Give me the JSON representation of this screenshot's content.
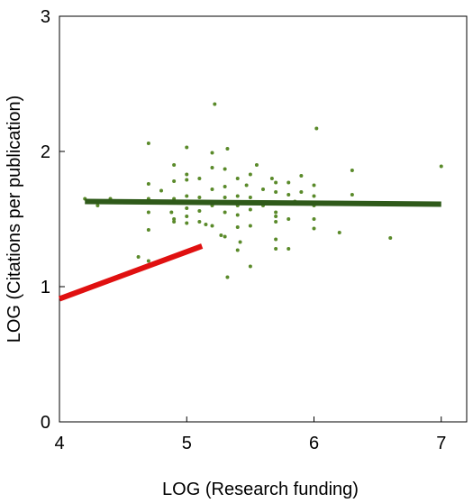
{
  "chart_data": {
    "type": "scatter",
    "title": "",
    "xlabel": "LOG (Research funding)",
    "ylabel": "LOG (Citations per publication)",
    "xlim": [
      4,
      7.2
    ],
    "ylim": [
      0,
      3
    ],
    "x_ticks": [
      "4",
      "5",
      "6",
      "7"
    ],
    "y_ticks": [
      "0",
      "1",
      "2",
      "3"
    ],
    "grid": false,
    "legend": "none",
    "colors": {
      "points": "#5a8a2a",
      "fit_line": "#2f5a1a",
      "red_line": "#e01010",
      "axes": "#000000"
    },
    "series": [
      {
        "values": [
          [
            4.2,
            1.65
          ],
          [
            4.3,
            1.6
          ],
          [
            4.4,
            1.65
          ],
          [
            4.62,
            1.22
          ],
          [
            4.7,
            1.19
          ],
          [
            4.7,
            1.42
          ],
          [
            4.7,
            1.55
          ],
          [
            4.7,
            1.65
          ],
          [
            4.7,
            1.76
          ],
          [
            4.7,
            2.06
          ],
          [
            4.8,
            1.71
          ],
          [
            4.88,
            1.55
          ],
          [
            4.9,
            1.48
          ],
          [
            4.9,
            1.5
          ],
          [
            4.9,
            1.65
          ],
          [
            4.9,
            1.78
          ],
          [
            4.9,
            1.9
          ],
          [
            5.0,
            1.47
          ],
          [
            5.0,
            1.52
          ],
          [
            5.0,
            1.58
          ],
          [
            5.0,
            1.67
          ],
          [
            5.0,
            1.79
          ],
          [
            5.0,
            1.83
          ],
          [
            5.0,
            2.03
          ],
          [
            5.1,
            1.48
          ],
          [
            5.1,
            1.56
          ],
          [
            5.1,
            1.66
          ],
          [
            5.1,
            1.8
          ],
          [
            5.15,
            1.46
          ],
          [
            5.2,
            1.45
          ],
          [
            5.2,
            1.6
          ],
          [
            5.2,
            1.72
          ],
          [
            5.2,
            1.88
          ],
          [
            5.2,
            1.99
          ],
          [
            5.22,
            2.35
          ],
          [
            5.25,
            1.62
          ],
          [
            5.27,
            1.38
          ],
          [
            5.3,
            1.37
          ],
          [
            5.3,
            1.55
          ],
          [
            5.3,
            1.66
          ],
          [
            5.3,
            1.74
          ],
          [
            5.3,
            1.87
          ],
          [
            5.32,
            2.02
          ],
          [
            5.32,
            1.07
          ],
          [
            5.4,
            1.27
          ],
          [
            5.4,
            1.44
          ],
          [
            5.4,
            1.53
          ],
          [
            5.4,
            1.6
          ],
          [
            5.4,
            1.67
          ],
          [
            5.4,
            1.8
          ],
          [
            5.42,
            1.33
          ],
          [
            5.47,
            1.75
          ],
          [
            5.5,
            1.45
          ],
          [
            5.5,
            1.57
          ],
          [
            5.5,
            1.66
          ],
          [
            5.5,
            1.83
          ],
          [
            5.5,
            1.15
          ],
          [
            5.55,
            1.9
          ],
          [
            5.6,
            1.6
          ],
          [
            5.6,
            1.72
          ],
          [
            5.67,
            1.8
          ],
          [
            5.7,
            1.28
          ],
          [
            5.7,
            1.35
          ],
          [
            5.7,
            1.48
          ],
          [
            5.7,
            1.55
          ],
          [
            5.7,
            1.62
          ],
          [
            5.7,
            1.7
          ],
          [
            5.7,
            1.77
          ],
          [
            5.7,
            1.52
          ],
          [
            5.8,
            1.28
          ],
          [
            5.8,
            1.5
          ],
          [
            5.8,
            1.68
          ],
          [
            5.8,
            1.77
          ],
          [
            5.85,
            1.63
          ],
          [
            5.9,
            1.7
          ],
          [
            5.9,
            1.82
          ],
          [
            6.0,
            1.43
          ],
          [
            6.0,
            1.5
          ],
          [
            6.0,
            1.6
          ],
          [
            6.0,
            1.67
          ],
          [
            6.0,
            1.75
          ],
          [
            6.02,
            2.17
          ],
          [
            6.2,
            1.4
          ],
          [
            6.3,
            1.68
          ],
          [
            6.3,
            1.86
          ],
          [
            6.6,
            1.36
          ],
          [
            7.0,
            1.89
          ]
        ]
      }
    ],
    "lines": [
      {
        "role": "fit",
        "x": [
          4.2,
          7.0
        ],
        "y": [
          1.63,
          1.61
        ]
      },
      {
        "role": "red",
        "x": [
          4.0,
          5.12
        ],
        "y": [
          0.91,
          1.3
        ]
      }
    ]
  }
}
